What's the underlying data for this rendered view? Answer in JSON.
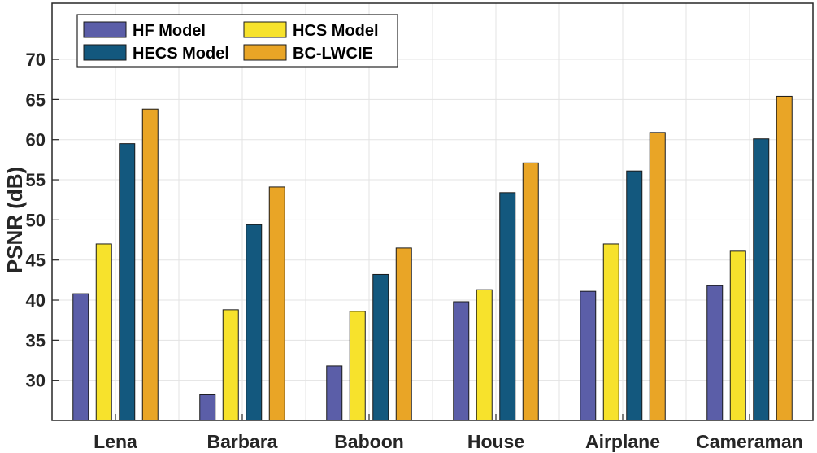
{
  "chart_data": {
    "type": "bar",
    "title": "",
    "xlabel": "",
    "ylabel": "PSNR (dB)",
    "ylim": [
      25,
      77
    ],
    "yticks": [
      30,
      35,
      40,
      45,
      50,
      55,
      60,
      65,
      70
    ],
    "grid": true,
    "legend_position": "top-left",
    "categories": [
      "Lena",
      "Barbara",
      "Baboon",
      "House",
      "Airplane",
      "Cameraman"
    ],
    "series": [
      {
        "name": "HF Model",
        "color": "#5b5ea8",
        "values": [
          40.8,
          28.2,
          31.8,
          39.8,
          41.1,
          41.8
        ]
      },
      {
        "name": "HCS Model",
        "color": "#f7e22c",
        "values": [
          47.0,
          38.8,
          38.6,
          41.3,
          47.0,
          46.1
        ]
      },
      {
        "name": "HECS Model",
        "color": "#13587e",
        "values": [
          59.5,
          49.4,
          43.2,
          53.4,
          56.1,
          60.1
        ]
      },
      {
        "name": "BC-LWCIE",
        "color": "#e9a526",
        "values": [
          63.8,
          54.1,
          46.5,
          57.1,
          60.9,
          65.4
        ]
      }
    ]
  }
}
